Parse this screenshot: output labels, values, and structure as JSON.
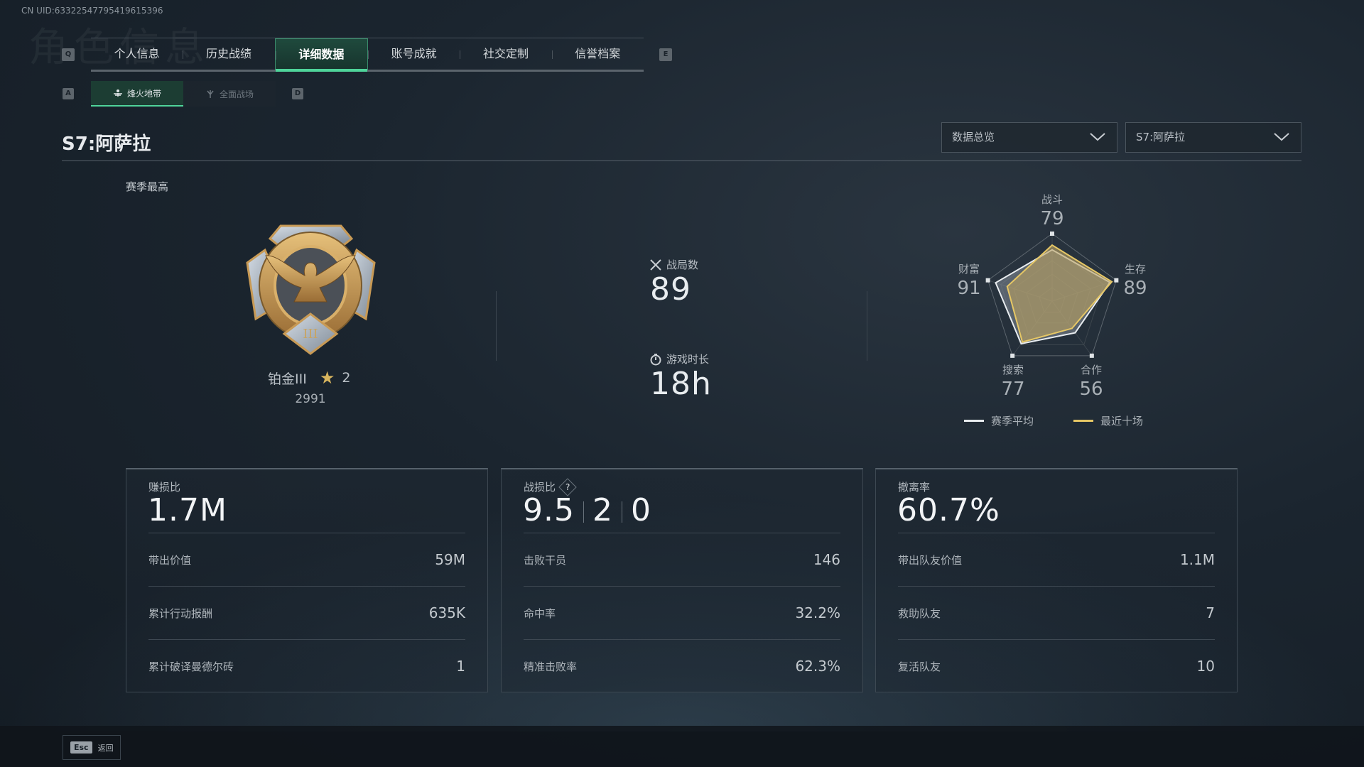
{
  "uid": "CN UID:63322547795419615396",
  "background_title": "角色信息",
  "nav": {
    "prev_key": "Q",
    "next_key": "E",
    "tabs": [
      {
        "label": "个人信息",
        "active": false
      },
      {
        "label": "历史战绩",
        "active": false
      },
      {
        "label": "详细数据",
        "active": true
      },
      {
        "label": "账号成就",
        "active": false
      },
      {
        "label": "社交定制",
        "active": false
      },
      {
        "label": "信誉档案",
        "active": false
      }
    ]
  },
  "subnav": {
    "prev_key": "A",
    "next_key": "D",
    "tabs": [
      {
        "label": "烽火地带",
        "icon": "beacon-icon",
        "active": true
      },
      {
        "label": "全面战场",
        "icon": "trident-icon",
        "active": false
      }
    ]
  },
  "page_title": "S7:阿萨拉",
  "filters": {
    "view": "数据总览",
    "season": "S7:阿萨拉"
  },
  "rank": {
    "section_label": "赛季最高",
    "name": "铂金III",
    "stars": "2",
    "score": "2991",
    "medal_numeral": "III"
  },
  "summary": {
    "matches_label": "战局数",
    "matches_value": "89",
    "playtime_label": "游戏时长",
    "playtime_value": "18h"
  },
  "radar": {
    "axes": [
      {
        "label": "战斗",
        "value": "79"
      },
      {
        "label": "生存",
        "value": "89"
      },
      {
        "label": "合作",
        "value": "56"
      },
      {
        "label": "搜索",
        "value": "77"
      },
      {
        "label": "财富",
        "value": "91"
      }
    ],
    "series": [
      {
        "name": "赛季平均",
        "color": "#e8ecef",
        "values": [
          76,
          90,
          58,
          78,
          88
        ]
      },
      {
        "name": "最近十场",
        "color": "#e6c765",
        "values": [
          83,
          93,
          50,
          75,
          70
        ]
      }
    ],
    "max": 100
  },
  "cards": [
    {
      "label": "赚损比",
      "value": "1.7M",
      "rows": [
        {
          "label": "带出价值",
          "value": "59M"
        },
        {
          "label": "累计行动报酬",
          "value": "635K"
        },
        {
          "label": "累计破译曼德尔砖",
          "value": "1"
        }
      ]
    },
    {
      "label": "战损比",
      "help": "?",
      "values": [
        "9.5",
        "2",
        "0"
      ],
      "rows": [
        {
          "label": "击败干员",
          "value": "146"
        },
        {
          "label": "命中率",
          "value": "32.2%"
        },
        {
          "label": "精准击败率",
          "value": "62.3%"
        }
      ]
    },
    {
      "label": "撤离率",
      "value": "60.7%",
      "rows": [
        {
          "label": "带出队友价值",
          "value": "1.1M"
        },
        {
          "label": "救助队友",
          "value": "7"
        },
        {
          "label": "复活队友",
          "value": "10"
        }
      ]
    }
  ],
  "footer": {
    "esc_key": "Esc",
    "back_label": "返回"
  },
  "colors": {
    "accent": "#4fd49a",
    "gold": "#e6c765"
  }
}
